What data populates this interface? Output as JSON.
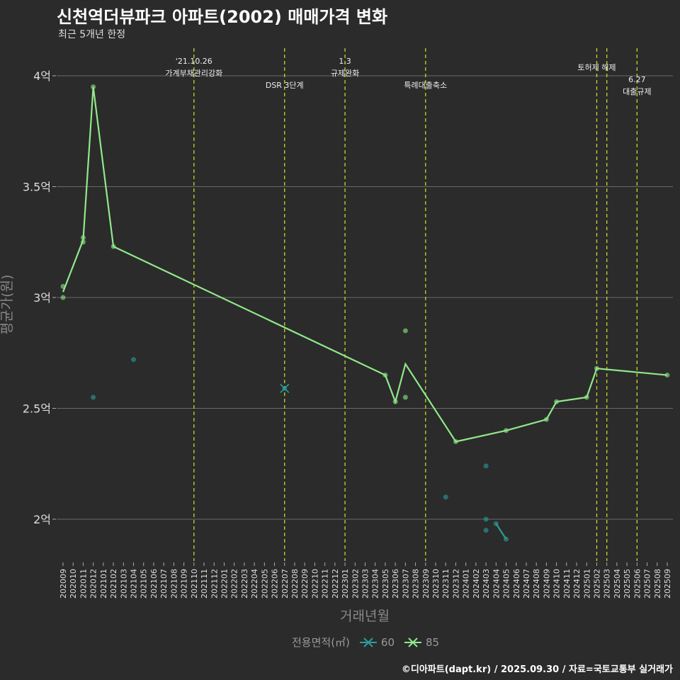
{
  "title": "신천역더뷰파크 아파트(2002) 매매가격 변화",
  "subtitle": "최근 5개년 한정",
  "caption": "©디아파트(dapt.kr) / 2025.09.30 / 자료=국토교통부 실거래가",
  "chart_data": {
    "type": "line",
    "xlabel": "거래년월",
    "ylabel": "평균가(원)",
    "ylim": [
      1.8,
      4.1
    ],
    "y_ticks": [
      {
        "v": 2,
        "label": "2억"
      },
      {
        "v": 2.5,
        "label": "2.5억"
      },
      {
        "v": 3,
        "label": "3억"
      },
      {
        "v": 3.5,
        "label": "3.5억"
      },
      {
        "v": 4,
        "label": "4억"
      }
    ],
    "x_ticks": [
      "202009",
      "202010",
      "202011",
      "202012",
      "202101",
      "202102",
      "202103",
      "202104",
      "202105",
      "202106",
      "202107",
      "202108",
      "202109",
      "202110",
      "202111",
      "202112",
      "202201",
      "202202",
      "202203",
      "202204",
      "202205",
      "202206",
      "202207",
      "202208",
      "202209",
      "202210",
      "202211",
      "202212",
      "202301",
      "202302",
      "202303",
      "202304",
      "202305",
      "202306",
      "202307",
      "202308",
      "202309",
      "202310",
      "202311",
      "202312",
      "202401",
      "202402",
      "202403",
      "202404",
      "202405",
      "202406",
      "202407",
      "202408",
      "202409",
      "202410",
      "202411",
      "202412",
      "202501",
      "202502",
      "202503",
      "202504",
      "202505",
      "202506",
      "202507",
      "202508",
      "202509"
    ],
    "legend_title": "전용면적(㎡)",
    "series": [
      {
        "name": "60",
        "color": "#2a9d9a",
        "line": [
          {
            "x": "202207",
            "y": 2.59
          },
          {
            "x": "202404",
            "y": 1.98
          },
          {
            "x": "202405",
            "y": 1.91
          }
        ],
        "points": [
          {
            "x": "202012",
            "y": 2.55
          },
          {
            "x": "202104",
            "y": 2.72
          },
          {
            "x": "202207",
            "y": 2.59
          },
          {
            "x": "202311",
            "y": 2.1
          },
          {
            "x": "202403",
            "y": 2.24
          },
          {
            "x": "202403",
            "y": 2.0
          },
          {
            "x": "202403",
            "y": 1.95
          },
          {
            "x": "202404",
            "y": 1.98
          },
          {
            "x": "202405",
            "y": 1.91
          }
        ]
      },
      {
        "name": "85",
        "color": "#90e88a",
        "line": [
          {
            "x": "202009",
            "y": 3.025
          },
          {
            "x": "202011",
            "y": 3.26
          },
          {
            "x": "202012",
            "y": 3.95
          },
          {
            "x": "202102",
            "y": 3.23
          },
          {
            "x": "202305",
            "y": 2.65
          },
          {
            "x": "202306",
            "y": 2.53
          },
          {
            "x": "202307",
            "y": 2.7
          },
          {
            "x": "202312",
            "y": 2.35
          },
          {
            "x": "202405",
            "y": 2.4
          },
          {
            "x": "202409",
            "y": 2.45
          },
          {
            "x": "202410",
            "y": 2.53
          },
          {
            "x": "202501",
            "y": 2.55
          },
          {
            "x": "202502",
            "y": 2.68
          },
          {
            "x": "202509",
            "y": 2.65
          }
        ],
        "points": [
          {
            "x": "202009",
            "y": 3.05
          },
          {
            "x": "202009",
            "y": 3.0
          },
          {
            "x": "202011",
            "y": 3.27
          },
          {
            "x": "202011",
            "y": 3.25
          },
          {
            "x": "202012",
            "y": 3.95
          },
          {
            "x": "202102",
            "y": 3.23
          },
          {
            "x": "202305",
            "y": 2.65
          },
          {
            "x": "202306",
            "y": 2.53
          },
          {
            "x": "202307",
            "y": 2.85
          },
          {
            "x": "202307",
            "y": 2.55
          },
          {
            "x": "202312",
            "y": 2.35
          },
          {
            "x": "202405",
            "y": 2.4
          },
          {
            "x": "202409",
            "y": 2.45
          },
          {
            "x": "202410",
            "y": 2.53
          },
          {
            "x": "202501",
            "y": 2.55
          },
          {
            "x": "202502",
            "y": 2.68
          },
          {
            "x": "202509",
            "y": 2.65
          }
        ]
      }
    ],
    "events": [
      {
        "x": "202110",
        "lines": [
          "'21.10.26",
          "가계부채관리강화"
        ]
      },
      {
        "x": "202207",
        "lines": [
          "DSR 3단계"
        ]
      },
      {
        "x": "202301",
        "lines": [
          "1.3",
          "규제완화"
        ]
      },
      {
        "x": "202309",
        "lines": [
          "특례대출축소"
        ]
      },
      {
        "x": "202502",
        "lines": [
          "토허제 해제"
        ]
      },
      {
        "x": "202503",
        "lines": []
      },
      {
        "x": "202506",
        "lines": [
          "6.27",
          "대출규제"
        ]
      }
    ]
  }
}
